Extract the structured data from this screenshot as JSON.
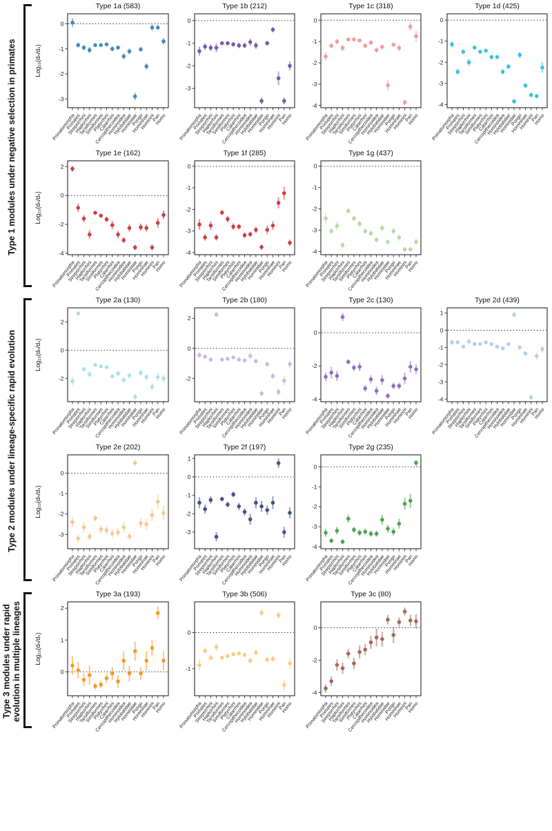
{
  "figure": {
    "ylabel": "Log₁₀(dₙ/dₛ)",
    "categories": [
      "Primatomorpha",
      "Primates",
      "Strepsirrhini",
      "Haplorrhini",
      "Tarsiiformes",
      "Simiiformes",
      "Platyrrhini",
      "Catarrhini",
      "Cercopithecoidea",
      "Hominoidea",
      "Hylobatidae",
      "Hominidae",
      "Pongo",
      "Homininae",
      "Hominini",
      "Pan",
      "Homo"
    ],
    "sections": [
      {
        "label": "Type 1 modules under negative selection in primates",
        "rows": [
          [
            "type-1a",
            "type-1b",
            "type-1c",
            "type-1d"
          ],
          [
            "type-1e",
            "type-1f",
            "type-1g"
          ]
        ]
      },
      {
        "label": "Type 2 modules under lineage-specific rapid evolution",
        "rows": [
          [
            "type-2a",
            "type-2b",
            "type-2c",
            "type-2d"
          ],
          [
            "type-2e",
            "type-2f",
            "type-2g"
          ]
        ]
      },
      {
        "label": "Type 3 modules under rapid evolution in multiple lineages",
        "rows": [
          [
            "type-3a",
            "type-3b",
            "type-3c"
          ]
        ]
      }
    ]
  },
  "chart_data": [
    {
      "id": "type-1a",
      "type": "scatter",
      "title": "Type 1a (583)",
      "color": "#3b87c0",
      "ylim": [
        -3.35,
        0.4
      ],
      "yticks": [
        0,
        -1,
        -2,
        -3
      ],
      "zero_line": true,
      "values": [
        0.05,
        -0.85,
        -0.95,
        -1.05,
        -0.85,
        -0.85,
        -0.82,
        -1.0,
        -0.95,
        -1.3,
        -1.1,
        -2.9,
        -1.02,
        -1.7,
        -0.15,
        -0.15,
        -0.7
      ],
      "errors": [
        0.18,
        0.1,
        0.1,
        0.13,
        0.07,
        0.06,
        0.06,
        0.1,
        0.08,
        0.12,
        0.12,
        0.15,
        0.1,
        0.12,
        0.12,
        0.1,
        0.13
      ]
    },
    {
      "id": "type-1b",
      "type": "scatter",
      "title": "Type 1b (212)",
      "color": "#6f54a8",
      "ylim": [
        -3.85,
        0.3
      ],
      "yticks": [
        0,
        -1,
        -2,
        -3
      ],
      "zero_line": true,
      "values": [
        -1.35,
        -1.15,
        -1.2,
        -1.2,
        -1.0,
        -1.0,
        -1.05,
        -1.1,
        -1.1,
        -0.95,
        -1.1,
        -3.55,
        -1.0,
        -0.4,
        -2.55,
        -3.55,
        -2.0
      ],
      "errors": [
        0.2,
        0.15,
        0.15,
        0.2,
        0.07,
        0.07,
        0.1,
        0.12,
        0.12,
        0.15,
        0.15,
        0.15,
        0.1,
        0.12,
        0.3,
        0.15,
        0.2
      ]
    },
    {
      "id": "type-1c",
      "type": "scatter",
      "title": "Type 1c (318)",
      "color": "#f2969a",
      "ylim": [
        -4.1,
        0.3
      ],
      "yticks": [
        0,
        -1,
        -2,
        -3,
        -4
      ],
      "zero_line": true,
      "values": [
        -1.7,
        -1.2,
        -1.0,
        -1.3,
        -0.9,
        -0.9,
        -0.95,
        -1.2,
        -1.05,
        -1.4,
        -1.25,
        -3.05,
        -1.15,
        -1.3,
        -3.85,
        -0.3,
        -0.75
      ],
      "errors": [
        0.2,
        0.12,
        0.12,
        0.15,
        0.07,
        0.06,
        0.08,
        0.12,
        0.1,
        0.12,
        0.12,
        0.25,
        0.1,
        0.15,
        0.12,
        0.2,
        0.25
      ]
    },
    {
      "id": "type-1d",
      "type": "scatter",
      "title": "Type 1d (425)",
      "color": "#30c0d8",
      "ylim": [
        -4.15,
        0.3
      ],
      "yticks": [
        0,
        -1,
        -2,
        -3,
        -4
      ],
      "zero_line": true,
      "values": [
        -1.15,
        -2.45,
        -1.5,
        -2.0,
        -1.3,
        -1.5,
        -1.45,
        -1.75,
        -1.75,
        -2.45,
        -2.2,
        -3.85,
        -1.65,
        -3.1,
        -3.55,
        -3.6,
        -2.25
      ],
      "errors": [
        0.15,
        0.15,
        0.12,
        0.18,
        0.08,
        0.08,
        0.08,
        0.1,
        0.1,
        0.12,
        0.12,
        0.12,
        0.15,
        0.12,
        0.12,
        0.1,
        0.25
      ]
    },
    {
      "id": "type-1e",
      "type": "scatter",
      "title": "Type 1e (162)",
      "color": "#cc3939",
      "ylim": [
        -4.1,
        2.4
      ],
      "yticks": [
        2,
        0,
        -2,
        -4
      ],
      "zero_line": true,
      "values": [
        1.85,
        -0.85,
        -1.6,
        -2.7,
        -1.2,
        -1.4,
        -1.65,
        -2.05,
        -2.7,
        -3.1,
        -2.25,
        -3.6,
        -2.2,
        -2.25,
        -3.6,
        -1.9,
        -1.35
      ],
      "errors": [
        0.2,
        0.3,
        0.25,
        0.3,
        0.12,
        0.15,
        0.2,
        0.3,
        0.25,
        0.2,
        0.25,
        0.2,
        0.25,
        0.25,
        0.2,
        0.35,
        0.3
      ]
    },
    {
      "id": "type-1f",
      "type": "scatter",
      "title": "Type 1f (285)",
      "color": "#cc3939",
      "ylim": [
        -4.1,
        0.25
      ],
      "yticks": [
        0,
        -1,
        -2,
        -3,
        -4
      ],
      "zero_line": true,
      "values": [
        -2.7,
        -3.3,
        -2.75,
        -3.3,
        -2.15,
        -2.45,
        -2.8,
        -2.8,
        -3.2,
        -3.15,
        -2.95,
        -3.75,
        -2.95,
        -2.75,
        -1.7,
        -1.25,
        -3.55
      ],
      "errors": [
        0.25,
        0.15,
        0.2,
        0.15,
        0.12,
        0.15,
        0.15,
        0.12,
        0.12,
        0.12,
        0.15,
        0.12,
        0.2,
        0.2,
        0.25,
        0.3,
        0.15
      ]
    },
    {
      "id": "type-1g",
      "type": "scatter",
      "title": "Type 1g (437)",
      "color": "#b5d99c",
      "ylim": [
        -4.15,
        0.25
      ],
      "yticks": [
        0,
        -1,
        -2,
        -3,
        -4
      ],
      "zero_line": true,
      "values": [
        -2.45,
        -3.05,
        -2.8,
        -3.7,
        -2.1,
        -2.45,
        -2.7,
        -3.05,
        -3.15,
        -3.45,
        -2.9,
        -3.55,
        -3.05,
        -3.35,
        -3.9,
        -3.9,
        -3.55
      ],
      "errors": [
        0.25,
        0.15,
        0.2,
        0.15,
        0.12,
        0.12,
        0.15,
        0.12,
        0.12,
        0.12,
        0.15,
        0.1,
        0.15,
        0.15,
        0.1,
        0.1,
        0.15
      ]
    },
    {
      "id": "type-2a",
      "type": "scatter",
      "title": "Type 2a (130)",
      "color": "#aadeeb",
      "ylim": [
        -3.65,
        3.0
      ],
      "yticks": [
        2,
        0,
        -2
      ],
      "zero_line": true,
      "values": [
        -2.2,
        2.6,
        -1.35,
        -1.7,
        -1.05,
        -1.15,
        -1.2,
        -1.85,
        -1.65,
        -2.1,
        -1.8,
        -3.3,
        -1.6,
        -1.9,
        -2.6,
        -1.9,
        -2.0
      ],
      "errors": [
        0.3,
        0.15,
        0.15,
        0.25,
        0.1,
        0.1,
        0.1,
        0.15,
        0.2,
        0.2,
        0.2,
        0.2,
        0.25,
        0.2,
        0.25,
        0.3,
        0.3
      ]
    },
    {
      "id": "type-2b",
      "type": "scatter",
      "title": "Type 2b (180)",
      "color": "#c9b6dd",
      "ylim": [
        -3.55,
        2.7
      ],
      "yticks": [
        2,
        0,
        -2
      ],
      "zero_line": true,
      "values": [
        -0.45,
        -0.55,
        -0.75,
        2.25,
        -0.75,
        -0.7,
        -0.6,
        -0.75,
        -0.8,
        -0.5,
        -0.85,
        -3.0,
        -1.05,
        -1.85,
        -2.9,
        -2.15,
        -1.05
      ],
      "errors": [
        0.2,
        0.15,
        0.15,
        0.15,
        0.08,
        0.08,
        0.08,
        0.12,
        0.12,
        0.2,
        0.15,
        0.2,
        0.15,
        0.2,
        0.25,
        0.3,
        0.25
      ]
    },
    {
      "id": "type-2c",
      "type": "scatter",
      "title": "Type 2c (130)",
      "color": "#8d68bd",
      "ylim": [
        -4.15,
        1.5
      ],
      "yticks": [
        0,
        -2,
        -4
      ],
      "zero_line": true,
      "values": [
        -2.65,
        -2.4,
        -2.6,
        0.95,
        -1.75,
        -2.1,
        -2.05,
        -3.35,
        -2.8,
        -3.5,
        -2.85,
        -3.8,
        -3.2,
        -3.2,
        -2.75,
        -2.05,
        -2.2
      ],
      "errors": [
        0.25,
        0.35,
        0.3,
        0.25,
        0.15,
        0.2,
        0.25,
        0.2,
        0.25,
        0.25,
        0.3,
        0.15,
        0.2,
        0.2,
        0.35,
        0.35,
        0.3
      ]
    },
    {
      "id": "type-2d",
      "type": "scatter",
      "title": "Type 2d (439)",
      "color": "#b2cfe9",
      "ylim": [
        -4.15,
        1.3
      ],
      "yticks": [
        1,
        0,
        -1,
        -2,
        -3,
        -4
      ],
      "zero_line": true,
      "values": [
        -0.7,
        -0.7,
        -0.95,
        -0.65,
        -0.8,
        -0.8,
        -0.7,
        -0.8,
        -0.95,
        -1.05,
        -0.8,
        0.9,
        -1.0,
        -1.35,
        -3.9,
        -1.5,
        -1.1
      ],
      "errors": [
        0.15,
        0.1,
        0.1,
        0.15,
        0.06,
        0.06,
        0.06,
        0.08,
        0.1,
        0.1,
        0.12,
        0.15,
        0.12,
        0.15,
        0.15,
        0.2,
        0.2
      ]
    },
    {
      "id": "type-2e",
      "type": "scatter",
      "title": "Type 2e (202)",
      "color": "#f6c68c",
      "ylim": [
        -3.7,
        0.9
      ],
      "yticks": [
        0,
        -1,
        -2,
        -3
      ],
      "zero_line": true,
      "values": [
        -2.4,
        -3.2,
        -2.65,
        -3.1,
        -2.2,
        -2.75,
        -2.8,
        -2.95,
        -2.9,
        -2.65,
        -3.1,
        0.5,
        -2.45,
        -2.5,
        -2.05,
        -1.4,
        -1.95
      ],
      "errors": [
        0.25,
        0.2,
        0.25,
        0.2,
        0.15,
        0.2,
        0.2,
        0.2,
        0.2,
        0.25,
        0.2,
        0.15,
        0.25,
        0.3,
        0.3,
        0.35,
        0.35
      ]
    },
    {
      "id": "type-2f",
      "type": "scatter",
      "title": "Type 2f (197)",
      "color": "#3d4b85",
      "ylim": [
        -3.9,
        1.2
      ],
      "yticks": [
        1,
        0,
        -1,
        -2,
        -3
      ],
      "zero_line": true,
      "values": [
        -1.4,
        -1.75,
        -1.25,
        -3.25,
        -1.2,
        -1.5,
        -0.95,
        -1.6,
        -1.9,
        -2.3,
        -1.4,
        -1.6,
        -1.8,
        -1.4,
        0.75,
        -3.0,
        -1.95
      ],
      "errors": [
        0.3,
        0.25,
        0.2,
        0.25,
        0.12,
        0.15,
        0.15,
        0.2,
        0.2,
        0.3,
        0.3,
        0.3,
        0.25,
        0.35,
        0.25,
        0.3,
        0.3
      ]
    },
    {
      "id": "type-2g",
      "type": "scatter",
      "title": "Type 2g (235)",
      "color": "#43a047",
      "ylim": [
        -4.1,
        0.6
      ],
      "yticks": [
        0,
        -1,
        -2,
        -3,
        -4
      ],
      "zero_line": true,
      "values": [
        -3.3,
        -3.7,
        -3.2,
        -3.75,
        -2.6,
        -3.15,
        -3.3,
        -3.25,
        -3.35,
        -3.35,
        -2.65,
        -3.1,
        -3.25,
        -2.85,
        -1.85,
        -1.7,
        0.2
      ],
      "errors": [
        0.2,
        0.12,
        0.2,
        0.12,
        0.2,
        0.15,
        0.15,
        0.15,
        0.15,
        0.15,
        0.25,
        0.2,
        0.2,
        0.25,
        0.3,
        0.35,
        0.15
      ]
    },
    {
      "id": "type-3a",
      "type": "scatter",
      "title": "Type 3a (193)",
      "color": "#f5941d",
      "ylim": [
        -0.75,
        2.2
      ],
      "yticks": [
        2,
        1,
        0
      ],
      "zero_line": true,
      "values": [
        0.2,
        0.05,
        -0.25,
        -0.1,
        -0.45,
        -0.4,
        -0.2,
        -0.05,
        -0.3,
        0.35,
        -0.05,
        0.65,
        -0.05,
        0.35,
        0.75,
        1.85,
        0.35
      ],
      "errors": [
        0.3,
        0.25,
        0.2,
        0.3,
        0.1,
        0.12,
        0.15,
        0.2,
        0.2,
        0.3,
        0.25,
        0.3,
        0.2,
        0.3,
        0.25,
        0.2,
        0.3
      ]
    },
    {
      "id": "type-3b",
      "type": "scatter",
      "title": "Type 3b (506)",
      "color": "#f9c97c",
      "ylim": [
        -1.75,
        0.85
      ],
      "yticks": [
        0,
        -1
      ],
      "zero_line": true,
      "values": [
        -0.9,
        -0.5,
        -0.7,
        -0.4,
        -0.7,
        -0.65,
        -0.6,
        -0.58,
        -0.62,
        -0.78,
        -0.55,
        0.55,
        -0.75,
        -0.73,
        0.48,
        -1.45,
        -0.85
      ],
      "errors": [
        0.15,
        0.1,
        0.08,
        0.12,
        0.05,
        0.05,
        0.05,
        0.05,
        0.06,
        0.08,
        0.08,
        0.1,
        0.08,
        0.08,
        0.1,
        0.15,
        0.15
      ]
    },
    {
      "id": "type-3c",
      "type": "scatter",
      "title": "Type 3c (80)",
      "color": "#a2614f",
      "ylim": [
        -4.2,
        1.6
      ],
      "yticks": [
        0,
        -2,
        -4
      ],
      "zero_line": true,
      "values": [
        -3.75,
        -3.3,
        -2.3,
        -2.5,
        -1.6,
        -2.2,
        -1.5,
        -1.35,
        -0.9,
        -0.6,
        -0.7,
        0.5,
        -0.45,
        0.35,
        1.0,
        0.45,
        0.4
      ],
      "errors": [
        0.25,
        0.3,
        0.35,
        0.35,
        0.3,
        0.35,
        0.4,
        0.35,
        0.4,
        0.55,
        0.45,
        0.3,
        0.5,
        0.3,
        0.25,
        0.35,
        0.45
      ]
    }
  ]
}
